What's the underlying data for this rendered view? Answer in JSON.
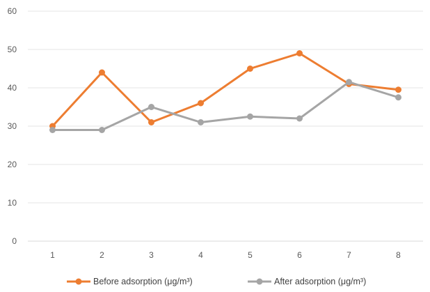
{
  "chart_data": {
    "type": "line",
    "title": "",
    "xlabel": "",
    "ylabel": "",
    "categories": [
      "1",
      "2",
      "3",
      "4",
      "5",
      "6",
      "7",
      "8"
    ],
    "ylim": [
      0,
      60
    ],
    "yticks": [
      "0",
      "10",
      "20",
      "30",
      "40",
      "50",
      "60"
    ],
    "grid": true,
    "legend_position": "bottom",
    "series": [
      {
        "name": "Before adsorption (μg/m³)",
        "color": "#ED7D31",
        "values": [
          30,
          44,
          31,
          36,
          45,
          49,
          41,
          39.5
        ]
      },
      {
        "name": "After adsorption (μg/m³)",
        "color": "#A5A5A5",
        "values": [
          29,
          29,
          35,
          31,
          32.5,
          32,
          41.5,
          37.5
        ]
      }
    ]
  }
}
